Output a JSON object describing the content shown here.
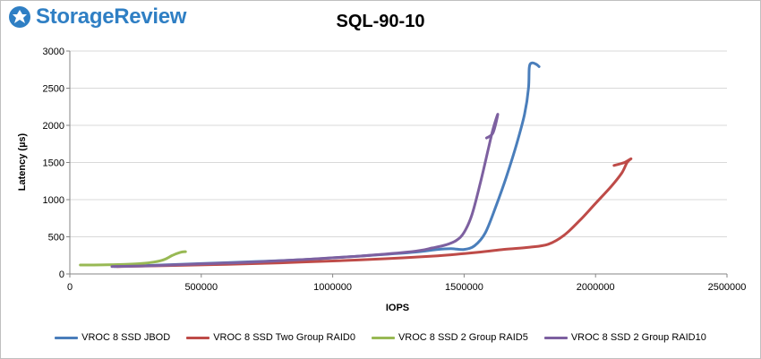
{
  "brand": {
    "name": "StorageReview"
  },
  "chart_data": {
    "type": "line",
    "title": "SQL-90-10",
    "xlabel": "IOPS",
    "ylabel": "Latency (µs)",
    "xlim": [
      0,
      2500000
    ],
    "ylim": [
      0,
      3000
    ],
    "x_ticks": [
      "0",
      "500000",
      "1000000",
      "1500000",
      "2000000",
      "2500000"
    ],
    "y_ticks": [
      "0",
      "500",
      "1000",
      "1500",
      "2000",
      "2500",
      "3000"
    ],
    "grid": "horizontal",
    "legend_position": "bottom",
    "series": [
      {
        "name": "VROC 8 SSD JBOD",
        "color": "#4a7ebb",
        "points": [
          [
            170000,
            100
          ],
          [
            300000,
            115
          ],
          [
            500000,
            140
          ],
          [
            700000,
            165
          ],
          [
            900000,
            195
          ],
          [
            1100000,
            240
          ],
          [
            1300000,
            290
          ],
          [
            1400000,
            330
          ],
          [
            1450000,
            340
          ],
          [
            1500000,
            330
          ],
          [
            1540000,
            380
          ],
          [
            1580000,
            550
          ],
          [
            1620000,
            900
          ],
          [
            1660000,
            1300
          ],
          [
            1700000,
            1750
          ],
          [
            1730000,
            2150
          ],
          [
            1745000,
            2500
          ],
          [
            1748000,
            2780
          ],
          [
            1758000,
            2840
          ],
          [
            1775000,
            2820
          ],
          [
            1785000,
            2790
          ]
        ]
      },
      {
        "name": "VROC 8 SSD Two Group RAID0",
        "color": "#be4b48",
        "points": [
          [
            180000,
            100
          ],
          [
            400000,
            115
          ],
          [
            600000,
            130
          ],
          [
            800000,
            150
          ],
          [
            1000000,
            175
          ],
          [
            1200000,
            205
          ],
          [
            1400000,
            245
          ],
          [
            1550000,
            290
          ],
          [
            1650000,
            330
          ],
          [
            1750000,
            360
          ],
          [
            1820000,
            400
          ],
          [
            1880000,
            520
          ],
          [
            1940000,
            720
          ],
          [
            2000000,
            950
          ],
          [
            2060000,
            1180
          ],
          [
            2100000,
            1360
          ],
          [
            2120000,
            1500
          ],
          [
            2135000,
            1550
          ],
          [
            2110000,
            1500
          ],
          [
            2070000,
            1460
          ]
        ]
      },
      {
        "name": "VROC 8 SSD 2 Group RAID5",
        "color": "#98b954",
        "points": [
          [
            40000,
            120
          ],
          [
            120000,
            122
          ],
          [
            200000,
            128
          ],
          [
            270000,
            140
          ],
          [
            320000,
            160
          ],
          [
            360000,
            195
          ],
          [
            390000,
            250
          ],
          [
            420000,
            290
          ],
          [
            440000,
            300
          ]
        ]
      },
      {
        "name": "VROC 8 SSD 2 Group RAID10",
        "color": "#7d60a0",
        "points": [
          [
            160000,
            100
          ],
          [
            300000,
            110
          ],
          [
            500000,
            135
          ],
          [
            700000,
            160
          ],
          [
            900000,
            195
          ],
          [
            1100000,
            240
          ],
          [
            1300000,
            300
          ],
          [
            1380000,
            350
          ],
          [
            1430000,
            390
          ],
          [
            1470000,
            450
          ],
          [
            1500000,
            560
          ],
          [
            1530000,
            800
          ],
          [
            1560000,
            1200
          ],
          [
            1590000,
            1650
          ],
          [
            1610000,
            1950
          ],
          [
            1628000,
            2150
          ],
          [
            1610000,
            1900
          ],
          [
            1585000,
            1830
          ]
        ]
      }
    ]
  }
}
